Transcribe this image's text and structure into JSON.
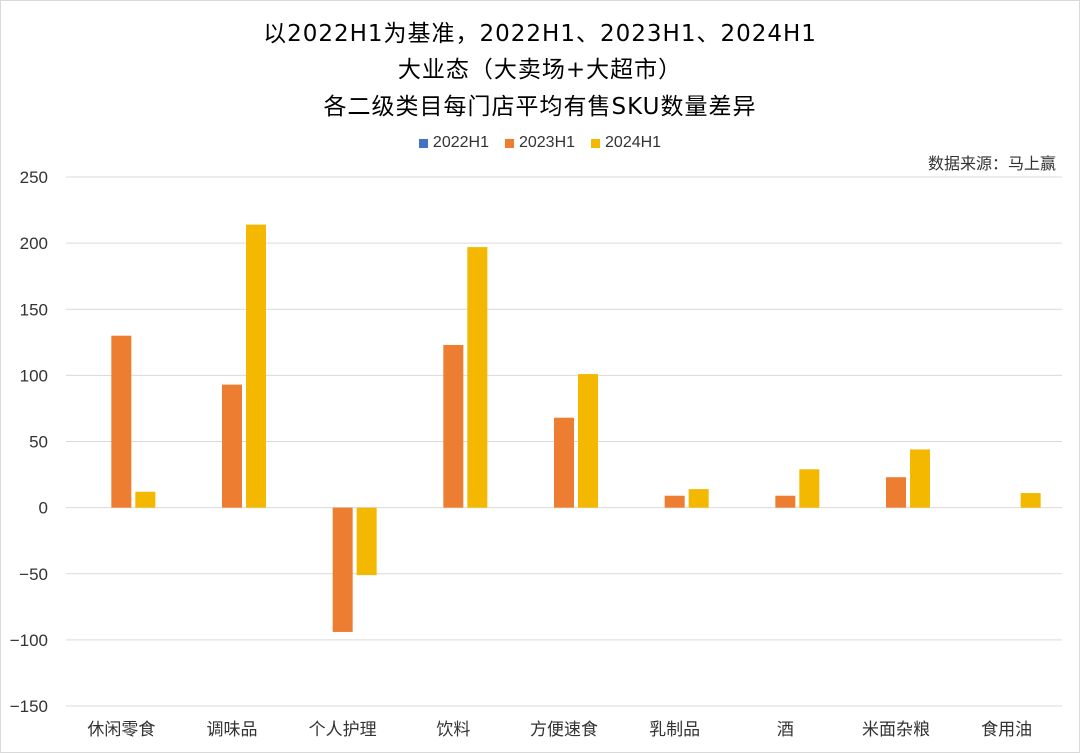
{
  "chart_data": {
    "type": "bar",
    "title_lines": [
      "以2022H1为基准，2022H1、2023H1、2024H1",
      "大业态（大卖场+大超市）",
      "各二级类目每门店平均有售SKU数量差异"
    ],
    "source": "数据来源：马上赢",
    "categories": [
      "休闲零食",
      "调味品",
      "个人护理",
      "饮料",
      "方便速食",
      "乳制品",
      "酒",
      "米面杂粮",
      "食用油"
    ],
    "series": [
      {
        "name": "2022H1",
        "color": "#4472c4",
        "values": [
          0,
          0,
          0,
          0,
          0,
          0,
          0,
          0,
          0
        ]
      },
      {
        "name": "2023H1",
        "color": "#ed7d31",
        "values": [
          130,
          93,
          -94,
          123,
          68,
          9,
          9,
          23,
          0
        ]
      },
      {
        "name": "2024H1",
        "color": "#f4b800",
        "values": [
          12,
          214,
          -51,
          197,
          101,
          14,
          29,
          44,
          11
        ]
      }
    ],
    "ylim": [
      -150,
      250
    ],
    "yticks": [
      -150,
      -100,
      -50,
      0,
      50,
      100,
      150,
      200,
      250
    ],
    "grid": true,
    "legend_position": "top-center"
  }
}
